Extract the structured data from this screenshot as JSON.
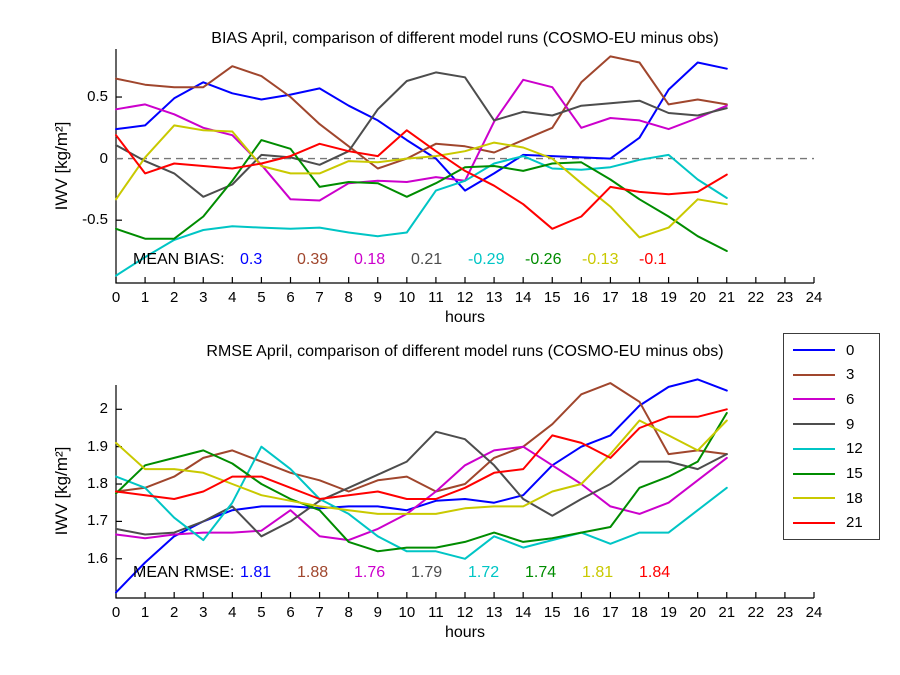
{
  "figure": {
    "background": "#ffffff"
  },
  "palette": {
    "blue": "#0000ff",
    "brown": "#a0462d",
    "magenta": "#cc00cc",
    "gray": "#4d4d4d",
    "cyan": "#00c5c5",
    "green": "#008c00",
    "olive": "#c9c900",
    "red": "#ff0000",
    "zero_line": "#777777",
    "axis": "#000000"
  },
  "legend": {
    "position": "right-middle",
    "entries": [
      {
        "label": "0",
        "color": "#0000ff"
      },
      {
        "label": "3",
        "color": "#a0462d"
      },
      {
        "label": "6",
        "color": "#cc00cc"
      },
      {
        "label": "9",
        "color": "#4d4d4d"
      },
      {
        "label": "12",
        "color": "#00c5c5"
      },
      {
        "label": "15",
        "color": "#008c00"
      },
      {
        "label": "18",
        "color": "#c9c900"
      },
      {
        "label": "21",
        "color": "#ff0000"
      }
    ]
  },
  "chart_data": [
    {
      "id": "bias",
      "type": "line",
      "title": "BIAS April, comparison of different model runs (COSMO-EU minus obs)",
      "xlabel": "hours",
      "ylabel": "IWV [kg/m²]",
      "xlim": [
        0,
        24
      ],
      "ylim": [
        -1.01,
        0.89
      ],
      "grid": false,
      "zero_line": true,
      "x_ticks": [
        0,
        1,
        2,
        3,
        4,
        5,
        6,
        7,
        8,
        9,
        10,
        11,
        12,
        13,
        14,
        15,
        16,
        17,
        18,
        19,
        20,
        21,
        22,
        23,
        24
      ],
      "y_ticks": [
        {
          "v": 0.5,
          "label": "0.5"
        },
        {
          "v": 0,
          "label": "0"
        },
        {
          "v": -0.5,
          "label": "-0.5"
        }
      ],
      "x": [
        0,
        1,
        2,
        3,
        4,
        5,
        6,
        7,
        8,
        9,
        10,
        11,
        12,
        13,
        14,
        15,
        16,
        17,
        18,
        19,
        20,
        21
      ],
      "series": [
        {
          "label": "0",
          "color": "#0000ff",
          "values": [
            0.24,
            0.27,
            0.49,
            0.62,
            0.53,
            0.48,
            0.52,
            0.57,
            0.43,
            0.31,
            0.15,
            0.0,
            -0.26,
            -0.12,
            0.03,
            0.02,
            0.01,
            0.0,
            0.17,
            0.56,
            0.78,
            0.73
          ]
        },
        {
          "label": "3",
          "color": "#a0462d",
          "values": [
            0.65,
            0.6,
            0.58,
            0.58,
            0.75,
            0.67,
            0.5,
            0.28,
            0.1,
            -0.08,
            0.0,
            0.12,
            0.1,
            0.05,
            0.15,
            0.25,
            0.62,
            0.83,
            0.78,
            0.44,
            0.48,
            0.44
          ]
        },
        {
          "label": "6",
          "color": "#cc00cc",
          "values": [
            0.4,
            0.44,
            0.36,
            0.25,
            0.19,
            -0.05,
            -0.33,
            -0.34,
            -0.2,
            -0.18,
            -0.19,
            -0.15,
            -0.18,
            0.3,
            0.64,
            0.58,
            0.25,
            0.33,
            0.31,
            0.24,
            0.33,
            0.43
          ]
        },
        {
          "label": "9",
          "color": "#4d4d4d",
          "values": [
            0.11,
            -0.02,
            -0.12,
            -0.31,
            -0.21,
            0.03,
            0.01,
            -0.05,
            0.06,
            0.4,
            0.63,
            0.7,
            0.66,
            0.31,
            0.38,
            0.35,
            0.43,
            0.45,
            0.47,
            0.37,
            0.35,
            0.41
          ]
        },
        {
          "label": "12",
          "color": "#00c5c5",
          "values": [
            -0.95,
            -0.8,
            -0.66,
            -0.58,
            -0.55,
            -0.56,
            -0.57,
            -0.56,
            -0.6,
            -0.63,
            -0.6,
            -0.26,
            -0.18,
            -0.04,
            0.02,
            -0.08,
            -0.09,
            -0.07,
            -0.01,
            0.03,
            -0.17,
            -0.32
          ]
        },
        {
          "label": "15",
          "color": "#008c00",
          "values": [
            -0.57,
            -0.65,
            -0.65,
            -0.47,
            -0.18,
            0.15,
            0.08,
            -0.23,
            -0.19,
            -0.2,
            -0.31,
            -0.2,
            -0.07,
            -0.06,
            -0.1,
            -0.04,
            -0.03,
            -0.17,
            -0.33,
            -0.47,
            -0.63,
            -0.75
          ]
        },
        {
          "label": "18",
          "color": "#c9c900",
          "values": [
            -0.33,
            0.01,
            0.27,
            0.23,
            0.22,
            -0.06,
            -0.12,
            -0.12,
            -0.02,
            -0.03,
            0.0,
            0.02,
            0.06,
            0.13,
            0.09,
            0.0,
            -0.2,
            -0.39,
            -0.64,
            -0.56,
            -0.33,
            -0.37
          ]
        },
        {
          "label": "21",
          "color": "#ff0000",
          "values": [
            0.19,
            -0.12,
            -0.04,
            -0.06,
            -0.08,
            -0.04,
            0.02,
            0.12,
            0.06,
            0.02,
            0.23,
            0.06,
            -0.1,
            -0.22,
            -0.37,
            -0.57,
            -0.47,
            -0.23,
            -0.27,
            -0.29,
            -0.27,
            -0.13
          ]
        }
      ],
      "mean_label": "MEAN BIAS:",
      "mean_values": [
        {
          "text": "0.3",
          "color": "#0000ff"
        },
        {
          "text": "0.39",
          "color": "#a0462d"
        },
        {
          "text": "0.18",
          "color": "#cc00cc"
        },
        {
          "text": "0.21",
          "color": "#4d4d4d"
        },
        {
          "text": "-0.29",
          "color": "#00c5c5"
        },
        {
          "text": "-0.26",
          "color": "#008c00"
        },
        {
          "text": "-0.13",
          "color": "#c9c900"
        },
        {
          "text": "-0.1",
          "color": "#ff0000"
        }
      ]
    },
    {
      "id": "rmse",
      "type": "line",
      "title": "RMSE April, comparison of different model runs (COSMO-EU minus obs)",
      "xlabel": "hours",
      "ylabel": "IWV [kg/m²]",
      "xlim": [
        0,
        24
      ],
      "ylim": [
        1.495,
        2.065
      ],
      "grid": false,
      "zero_line": false,
      "x_ticks": [
        0,
        1,
        2,
        3,
        4,
        5,
        6,
        7,
        8,
        9,
        10,
        11,
        12,
        13,
        14,
        15,
        16,
        17,
        18,
        19,
        20,
        21,
        22,
        23,
        24
      ],
      "y_ticks": [
        {
          "v": 2,
          "label": "2"
        },
        {
          "v": 1.9,
          "label": "1.9"
        },
        {
          "v": 1.8,
          "label": "1.8"
        },
        {
          "v": 1.7,
          "label": "1.7"
        },
        {
          "v": 1.6,
          "label": "1.6"
        }
      ],
      "x": [
        0,
        1,
        2,
        3,
        4,
        5,
        6,
        7,
        8,
        9,
        10,
        11,
        12,
        13,
        14,
        15,
        16,
        17,
        18,
        19,
        20,
        21
      ],
      "series": [
        {
          "label": "0",
          "color": "#0000ff",
          "values": [
            1.51,
            1.59,
            1.66,
            1.7,
            1.73,
            1.74,
            1.74,
            1.735,
            1.74,
            1.74,
            1.73,
            1.755,
            1.76,
            1.75,
            1.77,
            1.85,
            1.9,
            1.93,
            2.01,
            2.06,
            2.08,
            2.05
          ]
        },
        {
          "label": "3",
          "color": "#a0462d",
          "values": [
            1.78,
            1.79,
            1.82,
            1.87,
            1.89,
            1.86,
            1.83,
            1.81,
            1.78,
            1.81,
            1.82,
            1.78,
            1.8,
            1.87,
            1.9,
            1.96,
            2.04,
            2.07,
            2.02,
            1.88,
            1.89,
            1.88
          ]
        },
        {
          "label": "6",
          "color": "#cc00cc",
          "values": [
            1.665,
            1.655,
            1.665,
            1.67,
            1.67,
            1.675,
            1.73,
            1.66,
            1.65,
            1.68,
            1.72,
            1.78,
            1.85,
            1.89,
            1.9,
            1.85,
            1.8,
            1.74,
            1.72,
            1.75,
            1.81,
            1.87
          ]
        },
        {
          "label": "9",
          "color": "#4d4d4d",
          "values": [
            1.68,
            1.665,
            1.67,
            1.7,
            1.74,
            1.66,
            1.7,
            1.755,
            1.79,
            1.825,
            1.86,
            1.94,
            1.92,
            1.85,
            1.76,
            1.715,
            1.76,
            1.8,
            1.86,
            1.86,
            1.84,
            1.88
          ]
        },
        {
          "label": "12",
          "color": "#00c5c5",
          "values": [
            1.82,
            1.79,
            1.71,
            1.65,
            1.75,
            1.9,
            1.84,
            1.76,
            1.72,
            1.66,
            1.62,
            1.62,
            1.6,
            1.66,
            1.63,
            1.65,
            1.67,
            1.64,
            1.67,
            1.67,
            1.73,
            1.79
          ]
        },
        {
          "label": "15",
          "color": "#008c00",
          "values": [
            1.775,
            1.85,
            1.87,
            1.89,
            1.855,
            1.8,
            1.76,
            1.73,
            1.645,
            1.62,
            1.63,
            1.63,
            1.645,
            1.67,
            1.645,
            1.655,
            1.67,
            1.685,
            1.79,
            1.82,
            1.86,
            1.99
          ]
        },
        {
          "label": "18",
          "color": "#c9c900",
          "values": [
            1.91,
            1.84,
            1.84,
            1.83,
            1.8,
            1.77,
            1.755,
            1.74,
            1.73,
            1.72,
            1.72,
            1.72,
            1.735,
            1.74,
            1.74,
            1.78,
            1.8,
            1.88,
            1.97,
            1.93,
            1.89,
            1.97
          ]
        },
        {
          "label": "21",
          "color": "#ff0000",
          "values": [
            1.78,
            1.77,
            1.76,
            1.78,
            1.82,
            1.82,
            1.79,
            1.76,
            1.77,
            1.78,
            1.76,
            1.76,
            1.79,
            1.83,
            1.84,
            1.93,
            1.91,
            1.87,
            1.95,
            1.98,
            1.98,
            2.0
          ]
        }
      ],
      "mean_label": "MEAN RMSE:",
      "mean_values": [
        {
          "text": "1.81",
          "color": "#0000ff"
        },
        {
          "text": "1.88",
          "color": "#a0462d"
        },
        {
          "text": "1.76",
          "color": "#cc00cc"
        },
        {
          "text": "1.79",
          "color": "#4d4d4d"
        },
        {
          "text": "1.72",
          "color": "#00c5c5"
        },
        {
          "text": "1.74",
          "color": "#008c00"
        },
        {
          "text": "1.81",
          "color": "#c9c900"
        },
        {
          "text": "1.84",
          "color": "#ff0000"
        }
      ]
    }
  ]
}
